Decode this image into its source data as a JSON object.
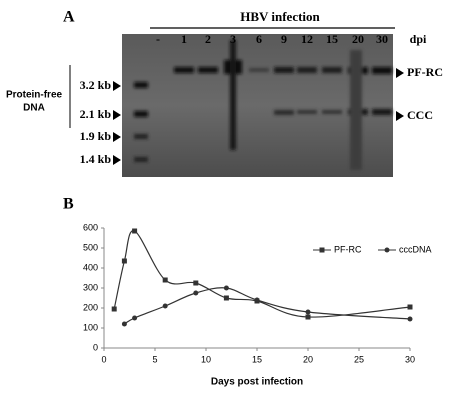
{
  "panel_a": {
    "label": "A",
    "header": "HBV infection",
    "lanes": [
      "-",
      "1",
      "2",
      "3",
      "6",
      "9",
      "12",
      "15",
      "20",
      "30"
    ],
    "lane_unit": "dpi",
    "side_label": [
      "Protein-free",
      "DNA"
    ],
    "size_markers": [
      "3.2 kb",
      "2.1 kb",
      "1.9 kb",
      "1.4 kb"
    ],
    "band_labels": [
      "PF-RC",
      "CCC"
    ]
  },
  "panel_b_label": "B",
  "chart_data": {
    "type": "line",
    "x_label": "Days post infection",
    "xlim": [
      0,
      30
    ],
    "xticks": [
      0,
      5,
      10,
      15,
      20,
      25,
      30
    ],
    "ylim": [
      0,
      600
    ],
    "yticks": [
      0,
      100,
      200,
      300,
      400,
      500,
      600
    ],
    "legend": "top-right",
    "series": [
      {
        "name": "PF-RC",
        "color": "#333333",
        "marker": "square",
        "x": [
          1,
          2,
          3,
          6,
          9,
          12,
          15,
          20,
          30
        ],
        "values": [
          195,
          435,
          585,
          340,
          325,
          250,
          235,
          155,
          205
        ]
      },
      {
        "name": "cccDNA",
        "color": "#333333",
        "marker": "circle",
        "x": [
          2,
          3,
          6,
          9,
          12,
          15,
          20,
          30
        ],
        "values": [
          120,
          150,
          210,
          275,
          300,
          240,
          180,
          145
        ]
      }
    ]
  }
}
